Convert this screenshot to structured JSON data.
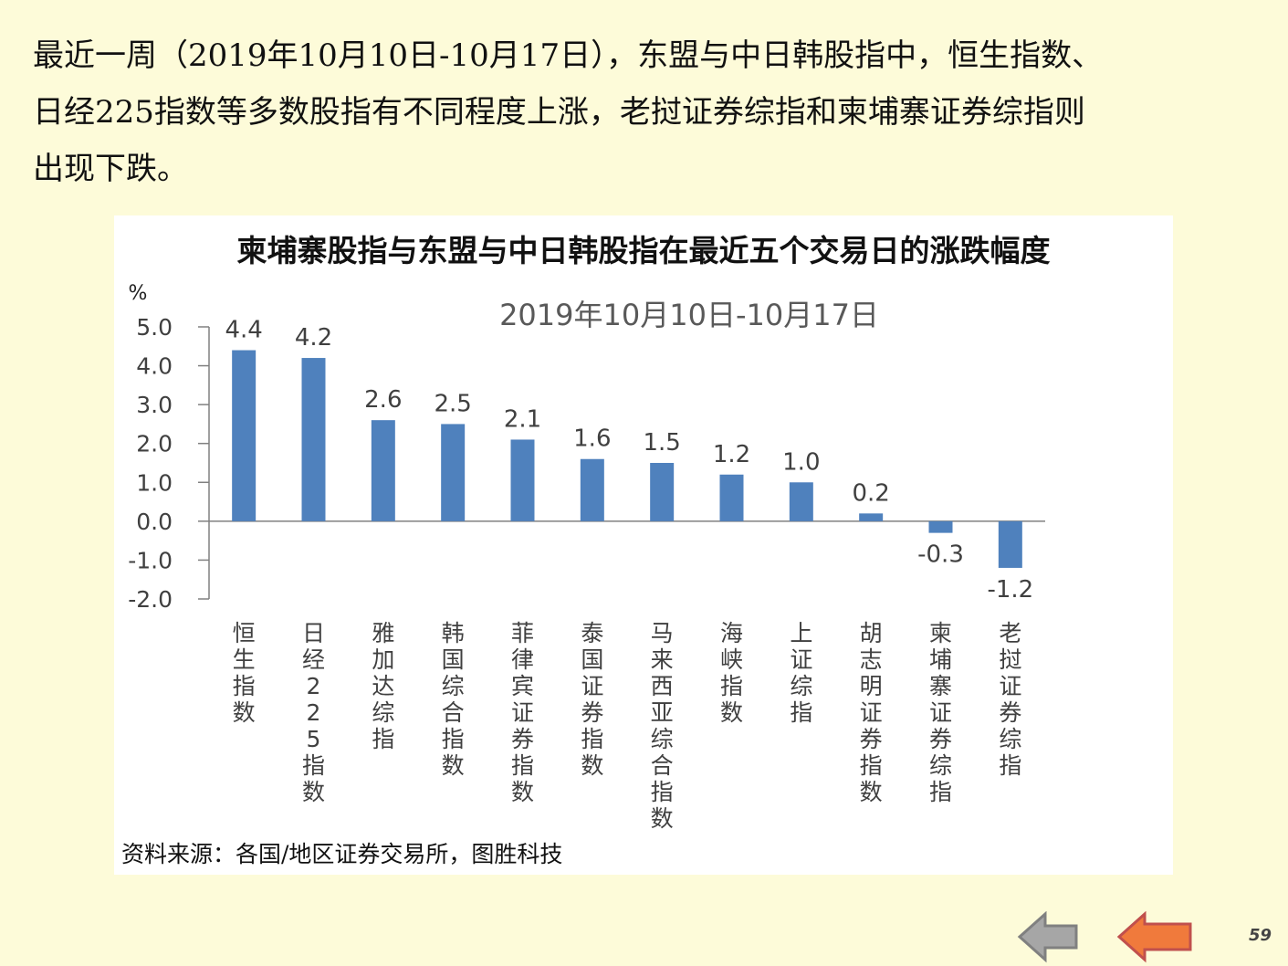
{
  "intro": {
    "lines": [
      "最近一周（2019年10月10日-10月17日），东盟与中日韩股指中，恒生指数、",
      "日经225指数等多数股指有不同程度上涨，老挝证券综指和柬埔寨证券综指则",
      "出现下跌。"
    ]
  },
  "chart_data": {
    "type": "bar",
    "title": "柬埔寨股指与东盟与中日韩股指在最近五个交易日的涨跌幅度",
    "subtitle": "2019年10月10日-10月17日",
    "ylabel": "%",
    "ylim": [
      -2.0,
      5.0
    ],
    "yticks": [
      "5.0",
      "4.0",
      "3.0",
      "2.0",
      "1.0",
      "0.0",
      "-1.0",
      "-2.0"
    ],
    "ytick_values": [
      5,
      4,
      3,
      2,
      1,
      0,
      -1,
      -2
    ],
    "categories": [
      "恒生指数",
      "日经225指数",
      "雅加达综指",
      "韩国综合指数",
      "菲律宾证券指数",
      "泰国证券指数",
      "马来西亚综合指数",
      "海峡指数",
      "上证综指",
      "胡志明证券指数",
      "柬埔寨证券综指",
      "老挝证券综指"
    ],
    "values": [
      4.4,
      4.2,
      2.6,
      2.5,
      2.1,
      1.6,
      1.5,
      1.2,
      1.0,
      0.2,
      -0.3,
      -1.2
    ],
    "value_labels": [
      "4.4",
      "4.2",
      "2.6",
      "2.5",
      "2.1",
      "1.6",
      "1.5",
      "1.2",
      "1.0",
      "0.2",
      "-0.3",
      "-1.2"
    ],
    "bar_color": "#4f81bd",
    "grid": false,
    "legend": "none"
  },
  "source": "资料来源：各国/地区证券交易所，图胜科技",
  "nav": {
    "back_color": "#a6a6a6",
    "forward_color": "#f07a3c",
    "back_icon": "arrow-left-icon",
    "forward_icon": "arrow-left-icon"
  },
  "page_number": "59"
}
